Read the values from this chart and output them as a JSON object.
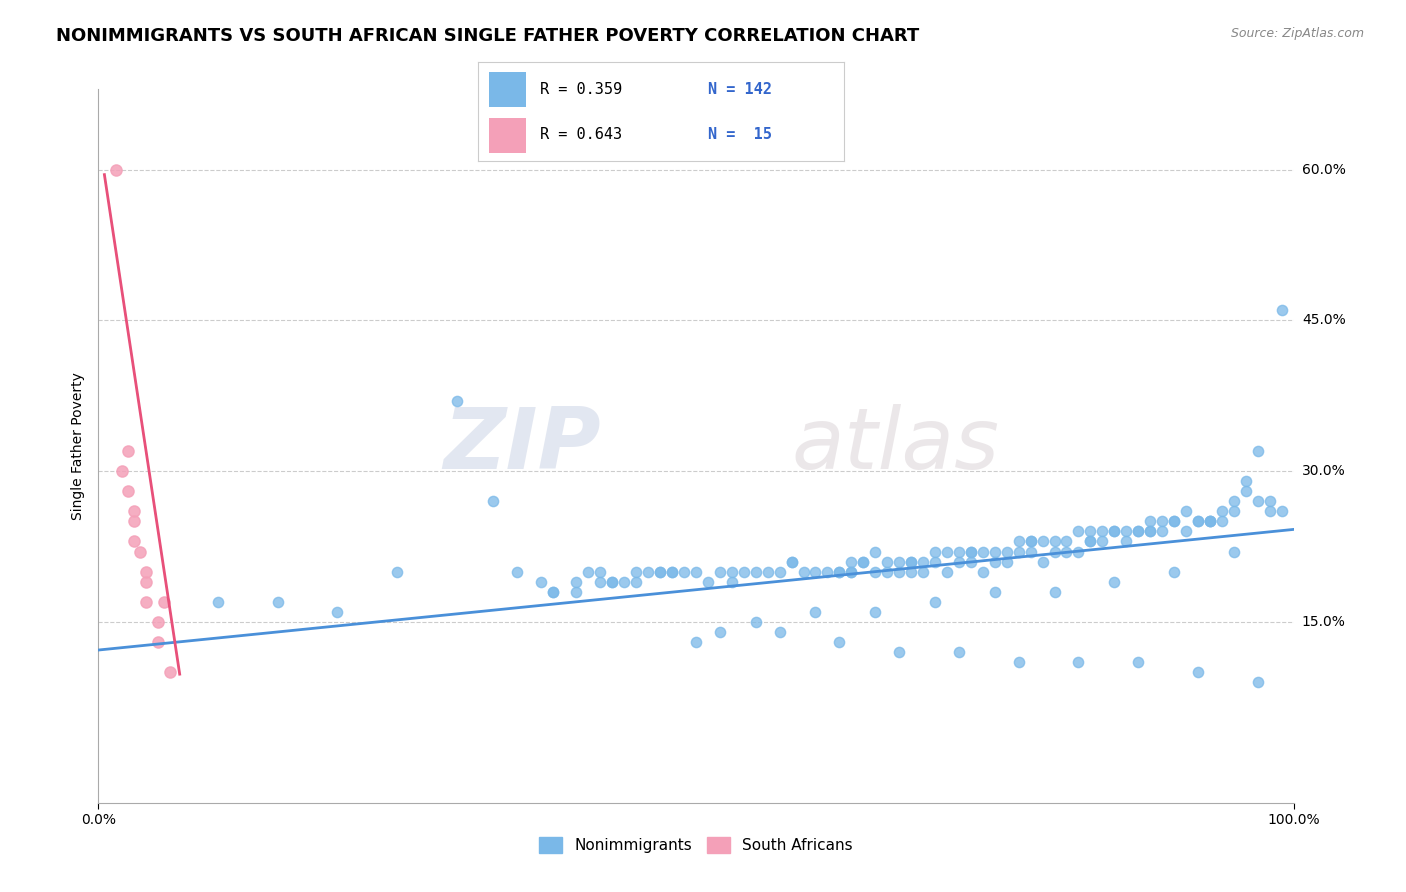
{
  "title": "NONIMMIGRANTS VS SOUTH AFRICAN SINGLE FATHER POVERTY CORRELATION CHART",
  "source": "Source: ZipAtlas.com",
  "ylabel": "Single Father Poverty",
  "watermark_zip": "ZIP",
  "watermark_atlas": "atlas",
  "xlim": [
    0,
    1.0
  ],
  "ylim": [
    -0.03,
    0.68
  ],
  "ytick_positions": [
    0.15,
    0.3,
    0.45,
    0.6
  ],
  "ytick_labels": [
    "15.0%",
    "30.0%",
    "45.0%",
    "60.0%"
  ],
  "blue_color": "#7ab8e8",
  "pink_color": "#f4a0b8",
  "blue_line_color": "#4a90d9",
  "pink_line_color": "#e8507a",
  "legend_text_color": "#3366cc",
  "grid_color": "#cccccc",
  "title_fontsize": 13,
  "axis_label_fontsize": 10,
  "tick_fontsize": 10,
  "nonimmigrant_x": [
    0.3,
    0.33,
    0.1,
    0.15,
    0.2,
    0.25,
    0.35,
    0.4,
    0.45,
    0.5,
    0.55,
    0.6,
    0.65,
    0.7,
    0.75,
    0.8,
    0.85,
    0.9,
    0.95,
    0.98,
    0.42,
    0.47,
    0.52,
    0.57,
    0.62,
    0.67,
    0.72,
    0.77,
    0.82,
    0.87,
    0.92,
    0.97,
    0.4,
    0.45,
    0.5,
    0.55,
    0.6,
    0.65,
    0.7,
    0.75,
    0.8,
    0.85,
    0.9,
    0.95,
    0.38,
    0.43,
    0.48,
    0.53,
    0.58,
    0.63,
    0.68,
    0.73,
    0.78,
    0.83,
    0.88,
    0.93,
    0.98,
    0.41,
    0.46,
    0.51,
    0.56,
    0.61,
    0.66,
    0.71,
    0.76,
    0.81,
    0.86,
    0.91,
    0.96,
    0.44,
    0.49,
    0.54,
    0.59,
    0.64,
    0.69,
    0.74,
    0.79,
    0.84,
    0.89,
    0.94,
    0.99,
    0.37,
    0.42,
    0.47,
    0.52,
    0.57,
    0.62,
    0.67,
    0.72,
    0.77,
    0.82,
    0.87,
    0.92,
    0.97,
    0.38,
    0.43,
    0.48,
    0.53,
    0.58,
    0.63,
    0.68,
    0.73,
    0.78,
    0.83,
    0.88,
    0.93,
    0.99,
    0.97,
    0.96,
    0.95,
    0.94,
    0.93,
    0.92,
    0.91,
    0.9,
    0.89,
    0.88,
    0.87,
    0.86,
    0.85,
    0.84,
    0.83,
    0.82,
    0.81,
    0.8,
    0.79,
    0.78,
    0.77,
    0.76,
    0.75,
    0.74,
    0.73,
    0.72,
    0.71,
    0.7,
    0.69,
    0.68,
    0.67,
    0.66,
    0.65,
    0.64,
    0.63,
    0.62
  ],
  "nonimmigrant_y": [
    0.37,
    0.27,
    0.17,
    0.17,
    0.16,
    0.2,
    0.2,
    0.18,
    0.2,
    0.2,
    0.2,
    0.2,
    0.22,
    0.22,
    0.22,
    0.23,
    0.24,
    0.25,
    0.26,
    0.27,
    0.19,
    0.2,
    0.2,
    0.2,
    0.2,
    0.21,
    0.22,
    0.23,
    0.24,
    0.24,
    0.25,
    0.27,
    0.19,
    0.19,
    0.13,
    0.15,
    0.16,
    0.16,
    0.17,
    0.18,
    0.18,
    0.19,
    0.2,
    0.22,
    0.18,
    0.19,
    0.2,
    0.19,
    0.21,
    0.21,
    0.2,
    0.22,
    0.23,
    0.24,
    0.24,
    0.25,
    0.26,
    0.2,
    0.2,
    0.19,
    0.2,
    0.2,
    0.21,
    0.22,
    0.22,
    0.23,
    0.24,
    0.26,
    0.28,
    0.19,
    0.2,
    0.2,
    0.2,
    0.21,
    0.21,
    0.22,
    0.23,
    0.24,
    0.25,
    0.25,
    0.26,
    0.19,
    0.2,
    0.2,
    0.14,
    0.14,
    0.13,
    0.12,
    0.12,
    0.11,
    0.11,
    0.11,
    0.1,
    0.09,
    0.18,
    0.19,
    0.2,
    0.2,
    0.21,
    0.2,
    0.21,
    0.22,
    0.23,
    0.23,
    0.24,
    0.25,
    0.46,
    0.32,
    0.29,
    0.27,
    0.26,
    0.25,
    0.25,
    0.24,
    0.25,
    0.24,
    0.25,
    0.24,
    0.23,
    0.24,
    0.23,
    0.23,
    0.22,
    0.22,
    0.22,
    0.21,
    0.22,
    0.22,
    0.21,
    0.21,
    0.2,
    0.21,
    0.21,
    0.2,
    0.21,
    0.2,
    0.21,
    0.2,
    0.2,
    0.2,
    0.21,
    0.2,
    0.2
  ],
  "south_african_x": [
    0.015,
    0.02,
    0.025,
    0.025,
    0.03,
    0.03,
    0.03,
    0.035,
    0.04,
    0.04,
    0.04,
    0.05,
    0.05,
    0.055,
    0.06
  ],
  "south_african_y": [
    0.6,
    0.3,
    0.32,
    0.28,
    0.26,
    0.25,
    0.23,
    0.22,
    0.2,
    0.19,
    0.17,
    0.15,
    0.13,
    0.17,
    0.1
  ],
  "blue_line_x": [
    0.0,
    1.0
  ],
  "blue_line_y_start": 0.122,
  "blue_line_y_end": 0.242,
  "pink_line_x_start": 0.005,
  "pink_line_x_end": 0.068,
  "pink_line_y_start": 0.595,
  "pink_line_y_end": 0.098,
  "pink_line_dashed_x_start": 0.005,
  "pink_line_dashed_x_end": 0.068,
  "pink_line_dashed_y_start": 0.595,
  "pink_line_dashed_y_end": 0.098
}
